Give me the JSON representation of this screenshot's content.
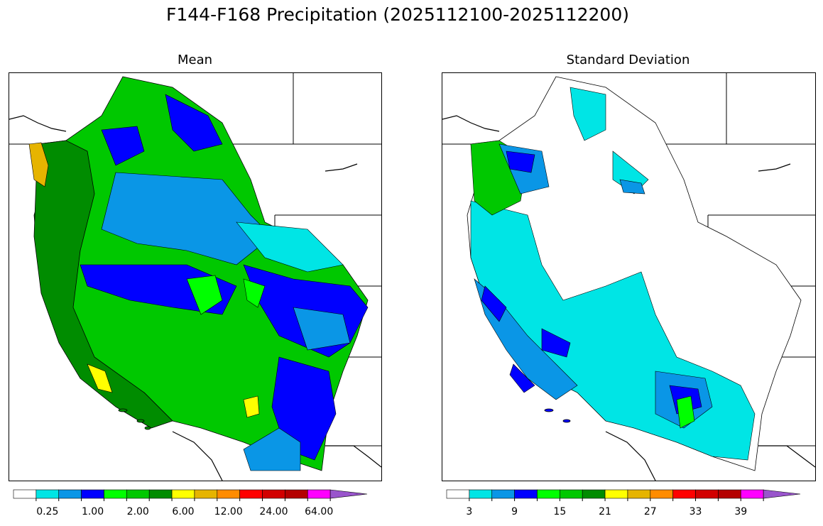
{
  "figure": {
    "title": "F144-F168 Precipitation (2025112100-2025112200)"
  },
  "panels": [
    {
      "id": "mean",
      "title": "Mean",
      "colorbar": {
        "colors": [
          "#ffffff",
          "#00e5e5",
          "#0a96e6",
          "#0000ff",
          "#00ff00",
          "#00c800",
          "#008c00",
          "#ffff00",
          "#e6b400",
          "#ff8c00",
          "#ff0000",
          "#d20000",
          "#b40000",
          "#ff00ff",
          "#9955cc"
        ],
        "tick_labels": [
          "0.25",
          "1.00",
          "2.00",
          "6.00",
          "12.00",
          "24.00",
          "64.00"
        ],
        "label_positions": [
          1,
          3,
          5,
          7,
          9,
          11,
          13
        ],
        "extend": "max"
      }
    },
    {
      "id": "stddev",
      "title": "Standard Deviation",
      "colorbar": {
        "colors": [
          "#ffffff",
          "#00e5e5",
          "#0a96e6",
          "#0000ff",
          "#00ff00",
          "#00c800",
          "#008c00",
          "#ffff00",
          "#e6b400",
          "#ff8c00",
          "#ff0000",
          "#d20000",
          "#b40000",
          "#ff00ff",
          "#9955cc"
        ],
        "tick_labels": [
          "3",
          "9",
          "15",
          "21",
          "27",
          "33",
          "39"
        ],
        "label_positions": [
          1,
          3,
          5,
          7,
          9,
          11,
          13
        ],
        "extend": "max"
      }
    }
  ]
}
